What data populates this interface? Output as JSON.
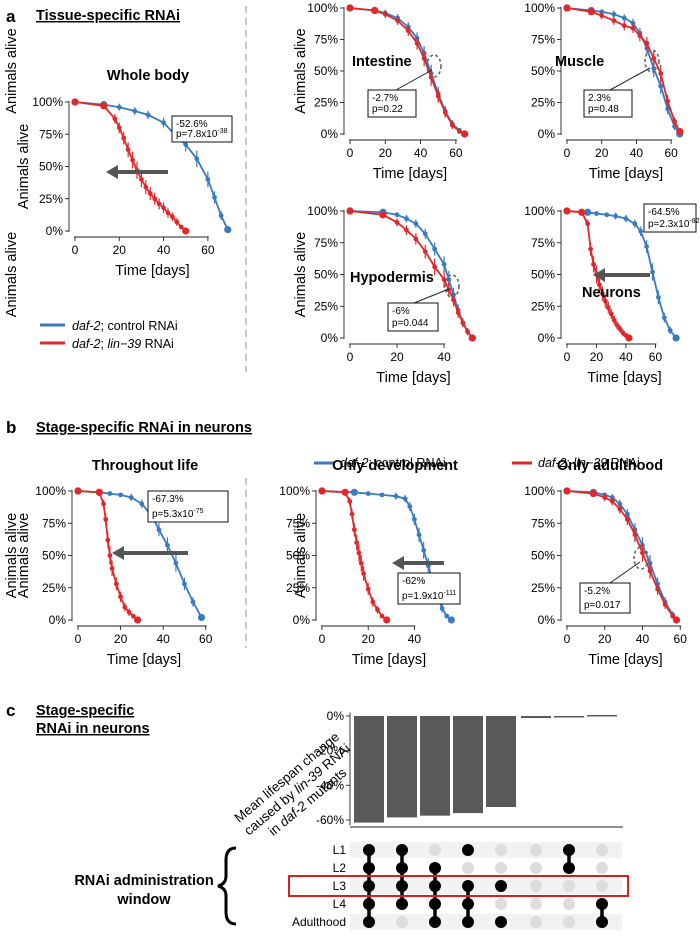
{
  "colors": {
    "control": "#3a7bbf",
    "lin39": "#e0282b",
    "bar": "#595959",
    "axis": "#222222",
    "highlight": "#d42020",
    "dotOff": "#dddddd",
    "dotOn": "#000000",
    "matrixBg": "#f2f2f2"
  },
  "panels": {
    "a": {
      "letter": "a",
      "heading": "Tissue-specific RNAi"
    },
    "b": {
      "letter": "b",
      "heading": "Stage-specific RNAi in neurons"
    },
    "c": {
      "letter": "c",
      "heading_lines": [
        "Stage-specific",
        "RNAi in neurons"
      ]
    }
  },
  "legend": {
    "items": [
      {
        "name": "control",
        "gene": "daf-2",
        "rest": "; control RNAi",
        "rest_gene": "",
        "rest_tail": ""
      },
      {
        "name": "lin39",
        "gene": "daf-2",
        "rest": "; ",
        "rest_gene": "lin−39",
        "rest_tail": " RNAi"
      }
    ]
  },
  "axis_text": {
    "xlabel": "Time [days]",
    "ylabel": "Animals alive"
  },
  "chart_data": [
    {
      "id": "whole-body",
      "type": "line",
      "title": "Whole body",
      "xlabel": "Time [days]",
      "ylabel": "Animals alive",
      "xlim": [
        0,
        70
      ],
      "xticks": [
        0,
        20,
        40,
        60
      ],
      "ylim": [
        0,
        100
      ],
      "yticks": [
        "0%",
        "25%",
        "50%",
        "75%",
        "100%"
      ],
      "series": [
        {
          "name": "daf-2; control RNAi",
          "color": "control",
          "x": [
            0,
            13,
            20,
            27,
            33,
            40,
            45,
            50,
            55,
            60,
            63,
            66,
            69
          ],
          "y": [
            100,
            98,
            96,
            93,
            90,
            84,
            75,
            67,
            56,
            40,
            26,
            12,
            1
          ]
        },
        {
          "name": "daf-2; lin-39 RNAi",
          "color": "lin39",
          "x": [
            0,
            13,
            18,
            20,
            22,
            24,
            26,
            28,
            30,
            32,
            34,
            36,
            38,
            40,
            42,
            44,
            46,
            48,
            50
          ],
          "y": [
            100,
            97,
            87,
            80,
            72,
            63,
            55,
            47,
            40,
            34,
            29,
            25,
            21,
            18,
            14,
            11,
            7,
            3,
            0
          ]
        }
      ],
      "annotation": {
        "lines": [
          "-52.6%",
          "p=7.8x10"
        ],
        "sup": "-38"
      }
    },
    {
      "id": "intestine",
      "type": "line",
      "title": "Intestine",
      "xlabel": "Time [days]",
      "ylabel": "Animals alive",
      "xlim": [
        0,
        68
      ],
      "xticks": [
        0,
        20,
        40,
        60
      ],
      "ylim": [
        0,
        100
      ],
      "yticks": [
        "0%",
        "25%",
        "50%",
        "75%",
        "100%"
      ],
      "series": [
        {
          "name": "daf-2; control RNAi",
          "color": "control",
          "x": [
            0,
            14,
            20,
            27,
            33,
            38,
            42,
            46,
            50,
            54,
            58,
            62,
            65
          ],
          "y": [
            100,
            98,
            96,
            92,
            85,
            76,
            64,
            48,
            32,
            18,
            8,
            3,
            0
          ]
        },
        {
          "name": "daf-2; lin-39 RNAi",
          "color": "lin39",
          "x": [
            0,
            14,
            20,
            27,
            33,
            38,
            42,
            46,
            50,
            54,
            58,
            62,
            65
          ],
          "y": [
            100,
            98,
            95,
            90,
            82,
            72,
            60,
            45,
            30,
            17,
            7,
            2,
            0
          ]
        }
      ],
      "annotation": {
        "lines": [
          "-2.7%",
          "p=0.22"
        ],
        "sup": ""
      }
    },
    {
      "id": "muscle",
      "type": "line",
      "title": "Muscle",
      "xlabel": "Time [days]",
      "ylabel": "Animals alive",
      "xlim": [
        0,
        68
      ],
      "xticks": [
        0,
        20,
        40,
        60
      ],
      "ylim": [
        0,
        100
      ],
      "yticks": [
        "0%",
        "25%",
        "50%",
        "75%",
        "100%"
      ],
      "series": [
        {
          "name": "daf-2; control RNAi",
          "color": "control",
          "x": [
            0,
            14,
            20,
            27,
            33,
            38,
            42,
            46,
            50,
            54,
            58,
            62,
            65
          ],
          "y": [
            100,
            98,
            97,
            95,
            92,
            88,
            80,
            68,
            52,
            38,
            20,
            6,
            0
          ]
        },
        {
          "name": "daf-2; lin-39 RNAi",
          "color": "lin39",
          "x": [
            0,
            14,
            20,
            27,
            33,
            38,
            42,
            46,
            50,
            54,
            58,
            62,
            65
          ],
          "y": [
            100,
            97,
            94,
            90,
            86,
            84,
            78,
            72,
            60,
            48,
            26,
            10,
            2
          ]
        }
      ],
      "annotation": {
        "lines": [
          "2.3%",
          "p=0.48"
        ],
        "sup": ""
      }
    },
    {
      "id": "hypodermis",
      "type": "line",
      "title": "Hypodermis",
      "xlabel": "Time [days]",
      "ylabel": "Animals alive",
      "xlim": [
        0,
        54
      ],
      "xticks": [
        0,
        20,
        40
      ],
      "ylim": [
        0,
        100
      ],
      "yticks": [
        "0%",
        "25%",
        "50%",
        "75%",
        "100%"
      ],
      "series": [
        {
          "name": "daf-2; control RNAi",
          "color": "control",
          "x": [
            0,
            14,
            20,
            24,
            28,
            32,
            36,
            40,
            42,
            44,
            46,
            48,
            50,
            52
          ],
          "y": [
            100,
            99,
            97,
            94,
            90,
            82,
            70,
            58,
            46,
            34,
            22,
            12,
            5,
            0
          ]
        },
        {
          "name": "daf-2; lin-39 RNAi",
          "color": "lin39",
          "x": [
            0,
            14,
            20,
            24,
            28,
            32,
            36,
            40,
            42,
            44,
            46,
            48,
            50,
            52
          ],
          "y": [
            100,
            97,
            91,
            85,
            78,
            68,
            56,
            46,
            38,
            30,
            20,
            12,
            5,
            0
          ]
        }
      ],
      "annotation": {
        "lines": [
          "-6%",
          "p=0.044"
        ],
        "sup": ""
      }
    },
    {
      "id": "neurons",
      "type": "line",
      "title": "Neurons",
      "xlabel": "Time [days]",
      "ylabel": "Animals alive",
      "xlim": [
        0,
        78
      ],
      "xticks": [
        0,
        20,
        40,
        60
      ],
      "ylim": [
        0,
        100
      ],
      "yticks": [
        "0%",
        "25%",
        "50%",
        "75%",
        "100%"
      ],
      "series": [
        {
          "name": "daf-2; control RNAi",
          "color": "control",
          "x": [
            0,
            14,
            20,
            27,
            33,
            40,
            46,
            50,
            54,
            58,
            62,
            66,
            70,
            74
          ],
          "y": [
            100,
            99,
            98,
            97,
            96,
            94,
            90,
            84,
            72,
            52,
            32,
            16,
            6,
            0
          ]
        },
        {
          "name": "daf-2; lin-39 RNAi",
          "color": "lin39",
          "x": [
            0,
            10,
            14,
            16,
            18,
            20,
            22,
            24,
            26,
            28,
            30,
            32,
            34,
            36,
            38,
            40,
            42
          ],
          "y": [
            100,
            99,
            90,
            70,
            58,
            50,
            42,
            35,
            29,
            24,
            19,
            14,
            10,
            7,
            4,
            2,
            0
          ]
        }
      ],
      "annotation": {
        "lines": [
          "-64.5%",
          "p=2.3x10"
        ],
        "sup": "-82"
      }
    },
    {
      "id": "throughout-life",
      "type": "line",
      "title": "Throughout life",
      "xlabel": "Time [days]",
      "ylabel": "Animals alive",
      "xlim": [
        0,
        62
      ],
      "xticks": [
        0,
        20,
        40,
        60
      ],
      "ylim": [
        0,
        100
      ],
      "yticks": [
        "0%",
        "25%",
        "50%",
        "75%",
        "100%"
      ],
      "series": [
        {
          "name": "daf-2; control RNAi",
          "color": "control",
          "x": [
            0,
            10,
            15,
            20,
            25,
            30,
            35,
            38,
            42,
            46,
            50,
            54,
            58
          ],
          "y": [
            100,
            99,
            98,
            97,
            95,
            90,
            80,
            70,
            58,
            44,
            28,
            14,
            2
          ]
        },
        {
          "name": "daf-2; lin-39 RNAi",
          "color": "lin39",
          "x": [
            0,
            10,
            12,
            13,
            14,
            15,
            16,
            18,
            20,
            22,
            24,
            26,
            28
          ],
          "y": [
            100,
            99,
            90,
            78,
            62,
            50,
            40,
            28,
            18,
            10,
            6,
            3,
            0
          ]
        }
      ],
      "annotation": {
        "lines": [
          "-67.3%",
          "p=5.3x10"
        ],
        "sup": "-75"
      }
    },
    {
      "id": "only-development",
      "type": "line",
      "title": "Only development",
      "xlabel": "Time [days]",
      "ylabel": "Animals alive",
      "xlim": [
        0,
        58
      ],
      "xticks": [
        0,
        20,
        40
      ],
      "ylim": [
        0,
        100
      ],
      "yticks": [
        "0%",
        "25%",
        "50%",
        "75%",
        "100%"
      ],
      "series": [
        {
          "name": "daf-2; control RNAi",
          "color": "control",
          "x": [
            0,
            14,
            20,
            26,
            32,
            36,
            38,
            40,
            42,
            44,
            46,
            48,
            50,
            52,
            54,
            56
          ],
          "y": [
            100,
            99,
            98,
            97,
            96,
            94,
            88,
            78,
            66,
            54,
            42,
            30,
            18,
            9,
            3,
            0
          ]
        },
        {
          "name": "daf-2; lin-39 RNAi",
          "color": "lin39",
          "x": [
            0,
            10,
            12,
            13,
            14,
            15,
            16,
            17,
            18,
            20,
            22,
            24,
            26,
            28
          ],
          "y": [
            100,
            99,
            92,
            82,
            70,
            60,
            52,
            44,
            36,
            24,
            14,
            8,
            3,
            0
          ]
        }
      ],
      "annotation": {
        "lines": [
          "-62%",
          "p=1.9x10"
        ],
        "sup": "-111"
      }
    },
    {
      "id": "only-adulthood",
      "type": "line",
      "title": "Only adulthood",
      "xlabel": "Time [days]",
      "ylabel": "Animals alive",
      "xlim": [
        0,
        62
      ],
      "xticks": [
        0,
        20,
        40,
        60
      ],
      "ylim": [
        0,
        100
      ],
      "yticks": [
        "0%",
        "25%",
        "50%",
        "75%",
        "100%"
      ],
      "series": [
        {
          "name": "daf-2; control RNAi",
          "color": "control",
          "x": [
            0,
            14,
            20,
            24,
            28,
            32,
            36,
            40,
            44,
            48,
            52,
            56,
            58
          ],
          "y": [
            100,
            99,
            97,
            95,
            90,
            82,
            70,
            58,
            44,
            28,
            14,
            4,
            0
          ]
        },
        {
          "name": "daf-2; lin-39 RNAi",
          "color": "lin39",
          "x": [
            0,
            14,
            20,
            24,
            28,
            32,
            36,
            40,
            44,
            48,
            52,
            56,
            58
          ],
          "y": [
            100,
            98,
            95,
            92,
            86,
            78,
            66,
            52,
            38,
            24,
            12,
            3,
            0
          ]
        }
      ],
      "annotation": {
        "lines": [
          "-5.2%",
          "p=0.017"
        ],
        "sup": ""
      }
    },
    {
      "id": "lifespan-change",
      "type": "bar",
      "ylabel_lines": [
        "Mean lifespan change",
        "caused by lin-39 RNAi",
        "in daf-2 mutants"
      ],
      "ylim": [
        -63,
        2
      ],
      "yticks": [
        0,
        -20,
        -40,
        -60
      ],
      "ytick_labels": [
        "0%",
        "-20%",
        "-40%",
        "-60%"
      ],
      "values": [
        -61.5,
        -58.5,
        -57.5,
        -56,
        -52.5,
        -1.2,
        -0.4,
        0.6
      ],
      "matrix": {
        "label_lines": [
          "RNAi administration",
          "window"
        ],
        "rows": [
          "L1",
          "L2",
          "L3",
          "L4",
          "Adulthood"
        ],
        "highlight_row": "L3",
        "columns": [
          [
            1,
            1,
            1,
            1,
            1
          ],
          [
            1,
            1,
            1,
            1,
            0
          ],
          [
            0,
            1,
            1,
            1,
            1
          ],
          [
            1,
            0,
            1,
            1,
            1
          ],
          [
            0,
            0,
            1,
            0,
            1
          ],
          [
            0,
            0,
            0,
            0,
            0
          ],
          [
            1,
            1,
            0,
            0,
            0
          ],
          [
            0,
            0,
            0,
            1,
            1
          ]
        ]
      }
    }
  ]
}
